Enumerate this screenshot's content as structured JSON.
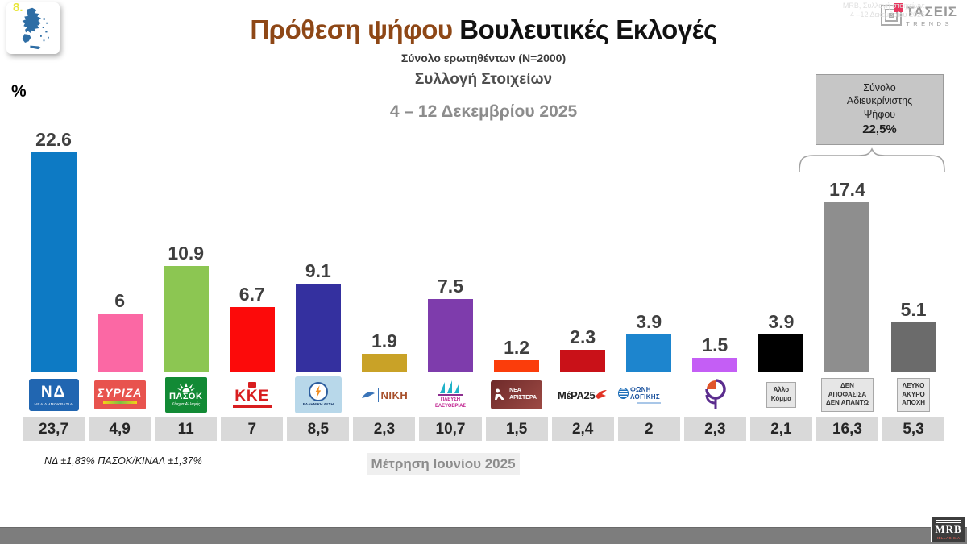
{
  "header": {
    "title_accent": "Πρόθεση ψήφου",
    "title_rest": "Βουλευτικές Εκλογές",
    "subtitle": "Σύνολο ερωτηθέντων (N=2000)",
    "collection_label": "Συλλογή Στοιχείων",
    "date_range": "4 – 12 Δεκεμβρίου 2025",
    "percent_label": "%"
  },
  "brand": {
    "name": "ΤΑΣΕΙΣ",
    "sub": "TRENDS"
  },
  "undecided_box": {
    "lines": [
      "Σύνολο",
      "Αδιευκρίνιστης",
      "Ψήφου"
    ],
    "value": "22,5%"
  },
  "chart_data": {
    "type": "bar",
    "title": "Πρόθεση ψήφου Βουλευτικές Εκλογές",
    "ylabel": "%",
    "ylim": [
      0,
      25
    ],
    "grid": false,
    "current_series_label": "4 – 12 Δεκεμβρίου 2025",
    "previous_series_label": "Μέτρηση Ιουνίου 2025",
    "parties": [
      {
        "id": "nea-dimokratia",
        "label": "22.6",
        "value": 22.6,
        "prev": "23,7",
        "color": "#0d7ac4",
        "logo": {
          "kind": "nd",
          "text": "ΝΔ",
          "sub": "ΝΕΑ ΔΗΜΟΚΡΑΤΙΑ"
        }
      },
      {
        "id": "syriza",
        "label": "6",
        "value": 6,
        "prev": "4,9",
        "color": "#fb68a4",
        "logo": {
          "kind": "syriza",
          "text": "ΣΥΡΙΖΑ"
        }
      },
      {
        "id": "pasok",
        "label": "10.9",
        "value": 10.9,
        "prev": "11",
        "color": "#8cc652",
        "logo": {
          "kind": "pasok",
          "text": "ΠΑΣΟΚ",
          "sub": "Κίνημα Αλλαγής"
        }
      },
      {
        "id": "kke",
        "label": "6.7",
        "value": 6.7,
        "prev": "7",
        "color": "#fc0a0a",
        "logo": {
          "kind": "kke",
          "text": "ΚΚΕ"
        }
      },
      {
        "id": "elliniki-lysi",
        "label": "9.1",
        "value": 9.1,
        "prev": "8,5",
        "color": "#34309f",
        "logo": {
          "kind": "ellysi",
          "text": "ΕΛΛΗΝΙΚΗ ΛΥΣΗ"
        }
      },
      {
        "id": "niki",
        "label": "1.9",
        "value": 1.9,
        "prev": "2,3",
        "color": "#c9a227",
        "logo": {
          "kind": "niki",
          "text": "ΝΙΚΗ"
        }
      },
      {
        "id": "plefsi-eleftherias",
        "label": "7.5",
        "value": 7.5,
        "prev": "10,7",
        "color": "#7e3cac",
        "logo": {
          "kind": "plefsi",
          "text": "ΠΛΕΥΣΗ ΕΛΕΥΘΕΡΙΑΣ"
        }
      },
      {
        "id": "nea-aristera",
        "label": "1.2",
        "value": 1.2,
        "prev": "1,5",
        "color": "#fb3d0b",
        "logo": {
          "kind": "nearist",
          "text": "ΝΕΑ ΑΡΙΣΤΕΡΑ"
        }
      },
      {
        "id": "mera25",
        "label": "2.3",
        "value": 2.3,
        "prev": "2,4",
        "color": "#c91118",
        "logo": {
          "kind": "mera",
          "text": "ΜέΡΑ25"
        }
      },
      {
        "id": "foni-logikis",
        "label": "3.9",
        "value": 3.9,
        "prev": "2",
        "color": "#1d85ce",
        "logo": {
          "kind": "foni",
          "text": "ΦΩΝΗ ΛΟΓΙΚΗΣ"
        }
      },
      {
        "id": "purple-logo-party",
        "label": "1.5",
        "value": 1.5,
        "prev": "2,3",
        "color": "#c45ef5",
        "logo": {
          "kind": "flower",
          "text": ""
        }
      },
      {
        "id": "allo-komma",
        "label": "3.9",
        "value": 3.9,
        "prev": "2,1",
        "color": "#000000",
        "logo": {
          "kind": "labelbox",
          "lines": [
            "Άλλο",
            "Κόμμα"
          ]
        }
      },
      {
        "id": "den-apofasisa",
        "label": "17.4",
        "value": 17.4,
        "prev": "16,3",
        "color": "#8e8e8e",
        "logo": {
          "kind": "labelbox",
          "lines": [
            "ΔΕΝ",
            "ΑΠΟΦΑΣΙΣΑ",
            "ΔΕΝ ΑΠΑΝΤΩ"
          ]
        }
      },
      {
        "id": "lefko-akyro-apochi",
        "label": "5.1",
        "value": 5.1,
        "prev": "5,3",
        "color": "#6b6b6b",
        "logo": {
          "kind": "labelbox",
          "lines": [
            "ΛΕΥΚΟ",
            "ΑΚΥΡΟ",
            "ΑΠΟΧΗ"
          ]
        }
      }
    ]
  },
  "notes": {
    "error_margin": "ΝΔ ±1,83% ΠΑΣΟΚ/ΚΙΝΑΛ ±1,37%",
    "previous_measurement": "Μέτρηση Ιουνίου 2025"
  },
  "footer": {
    "page_number": "8.",
    "source_line1": "MRB, Συλλογή στοιχείων:",
    "source_line2": "4 –12 Δεκεμβρίου 2025",
    "mrb_name": "MRB",
    "mrb_sub": "HELLAS S.A."
  }
}
